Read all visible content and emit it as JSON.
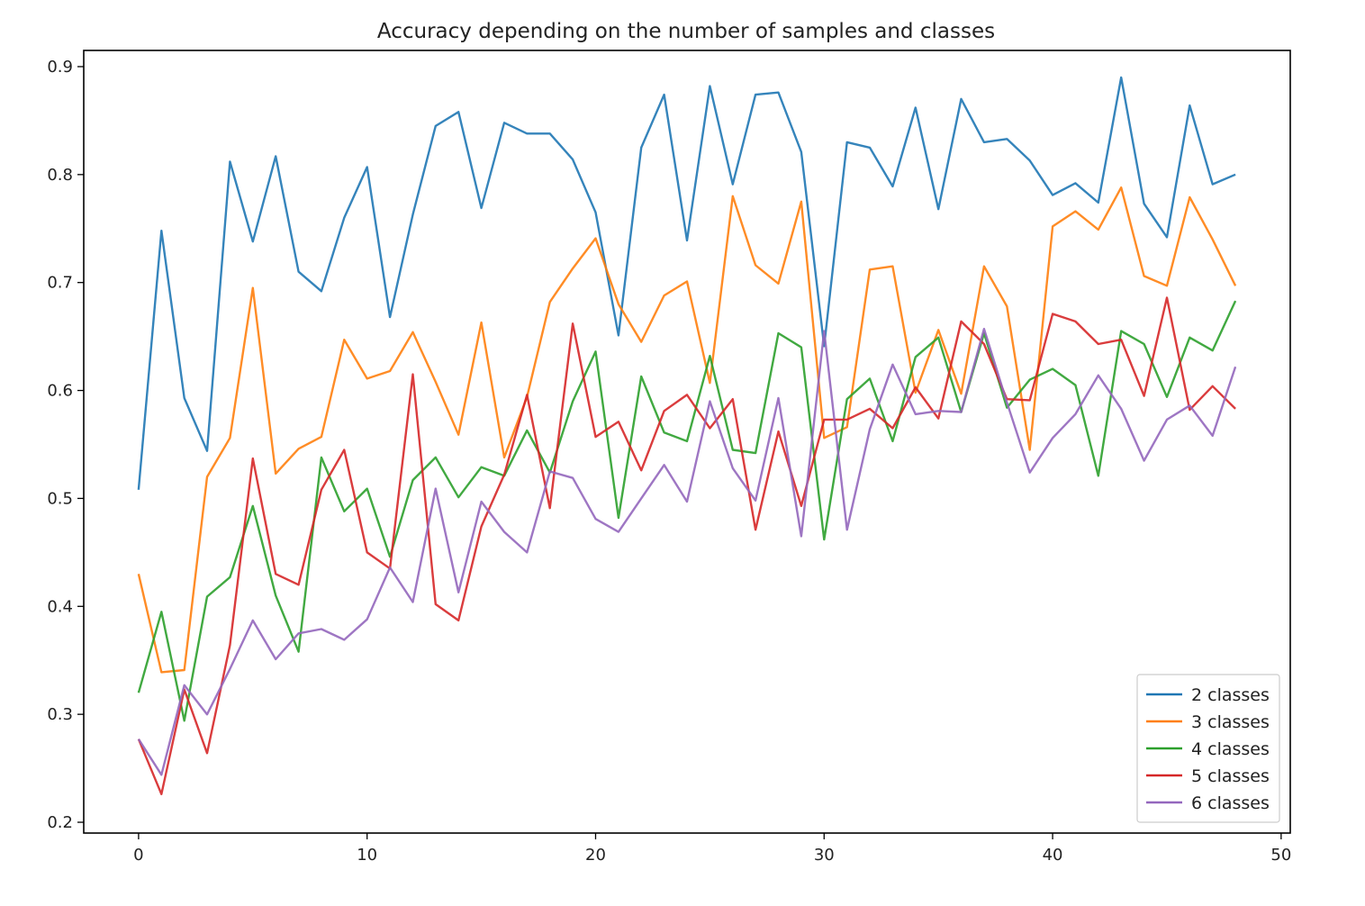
{
  "chart_data": {
    "type": "line",
    "title": "Accuracy depending on the number of samples and classes",
    "xlabel": "",
    "ylabel": "",
    "xlim": [
      -2.4,
      50.4
    ],
    "ylim": [
      0.19,
      0.915
    ],
    "x_ticks": [
      0,
      10,
      20,
      30,
      40,
      50
    ],
    "y_ticks": [
      0.2,
      0.3,
      0.4,
      0.5,
      0.6,
      0.7,
      0.8,
      0.9
    ],
    "x_tick_labels": [
      "0",
      "10",
      "20",
      "30",
      "40",
      "50"
    ],
    "y_tick_labels": [
      "0.2",
      "0.3",
      "0.4",
      "0.5",
      "0.6",
      "0.7",
      "0.8",
      "0.9"
    ],
    "grid": false,
    "legend_position": "lower-right",
    "x": [
      0,
      1,
      2,
      3,
      4,
      5,
      6,
      7,
      8,
      9,
      10,
      11,
      12,
      13,
      14,
      15,
      16,
      17,
      18,
      19,
      20,
      21,
      22,
      23,
      24,
      25,
      26,
      27,
      28,
      29,
      30,
      31,
      32,
      33,
      34,
      35,
      36,
      37,
      38,
      39,
      40,
      41,
      42,
      43,
      44,
      45,
      46,
      47,
      48
    ],
    "series": [
      {
        "name": "2 classes",
        "color": "#1f77b4",
        "values": [
          0.508,
          0.748,
          0.593,
          0.544,
          0.812,
          0.738,
          0.817,
          0.71,
          0.692,
          0.76,
          0.807,
          0.668,
          0.763,
          0.845,
          0.858,
          0.769,
          0.848,
          0.838,
          0.838,
          0.814,
          0.765,
          0.651,
          0.825,
          0.874,
          0.739,
          0.882,
          0.791,
          0.874,
          0.876,
          0.821,
          0.641,
          0.83,
          0.825,
          0.789,
          0.862,
          0.768,
          0.87,
          0.83,
          0.833,
          0.813,
          0.781,
          0.792,
          0.774,
          0.89,
          0.773,
          0.742,
          0.864,
          0.791,
          0.8
        ]
      },
      {
        "name": "3 classes",
        "color": "#ff7f0e",
        "values": [
          0.43,
          0.339,
          0.341,
          0.52,
          0.556,
          0.695,
          0.523,
          0.546,
          0.557,
          0.647,
          0.611,
          0.618,
          0.654,
          0.608,
          0.559,
          0.663,
          0.538,
          0.594,
          0.682,
          0.713,
          0.741,
          0.68,
          0.645,
          0.688,
          0.701,
          0.607,
          0.78,
          0.716,
          0.699,
          0.775,
          0.556,
          0.566,
          0.712,
          0.715,
          0.598,
          0.656,
          0.597,
          0.715,
          0.678,
          0.545,
          0.752,
          0.766,
          0.749,
          0.788,
          0.706,
          0.697,
          0.779,
          0.74,
          0.697
        ]
      },
      {
        "name": "4 classes",
        "color": "#2ca02c",
        "values": [
          0.32,
          0.395,
          0.294,
          0.409,
          0.427,
          0.493,
          0.41,
          0.358,
          0.538,
          0.488,
          0.509,
          0.446,
          0.517,
          0.538,
          0.501,
          0.529,
          0.521,
          0.563,
          0.524,
          0.59,
          0.636,
          0.482,
          0.613,
          0.561,
          0.553,
          0.632,
          0.545,
          0.542,
          0.653,
          0.64,
          0.462,
          0.592,
          0.611,
          0.553,
          0.631,
          0.649,
          0.58,
          0.653,
          0.584,
          0.61,
          0.62,
          0.605,
          0.521,
          0.655,
          0.643,
          0.594,
          0.649,
          0.637,
          0.683
        ]
      },
      {
        "name": "5 classes",
        "color": "#d62728",
        "values": [
          0.277,
          0.226,
          0.323,
          0.264,
          0.364,
          0.537,
          0.43,
          0.42,
          0.508,
          0.545,
          0.45,
          0.435,
          0.615,
          0.402,
          0.387,
          0.474,
          0.522,
          0.596,
          0.491,
          0.662,
          0.557,
          0.571,
          0.526,
          0.581,
          0.596,
          0.565,
          0.592,
          0.471,
          0.562,
          0.493,
          0.573,
          0.573,
          0.583,
          0.565,
          0.603,
          0.574,
          0.664,
          0.643,
          0.592,
          0.591,
          0.671,
          0.664,
          0.643,
          0.647,
          0.595,
          0.686,
          0.582,
          0.604,
          0.583
        ]
      },
      {
        "name": "6 classes",
        "color": "#9467bd",
        "values": [
          0.277,
          0.244,
          0.327,
          0.3,
          0.342,
          0.387,
          0.351,
          0.375,
          0.379,
          0.369,
          0.388,
          0.436,
          0.404,
          0.509,
          0.413,
          0.497,
          0.469,
          0.45,
          0.525,
          0.519,
          0.481,
          0.469,
          0.5,
          0.531,
          0.497,
          0.59,
          0.528,
          0.498,
          0.593,
          0.465,
          0.655,
          0.471,
          0.564,
          0.624,
          0.578,
          0.581,
          0.58,
          0.657,
          0.589,
          0.524,
          0.556,
          0.578,
          0.614,
          0.583,
          0.535,
          0.573,
          0.586,
          0.558,
          0.622
        ]
      }
    ]
  }
}
